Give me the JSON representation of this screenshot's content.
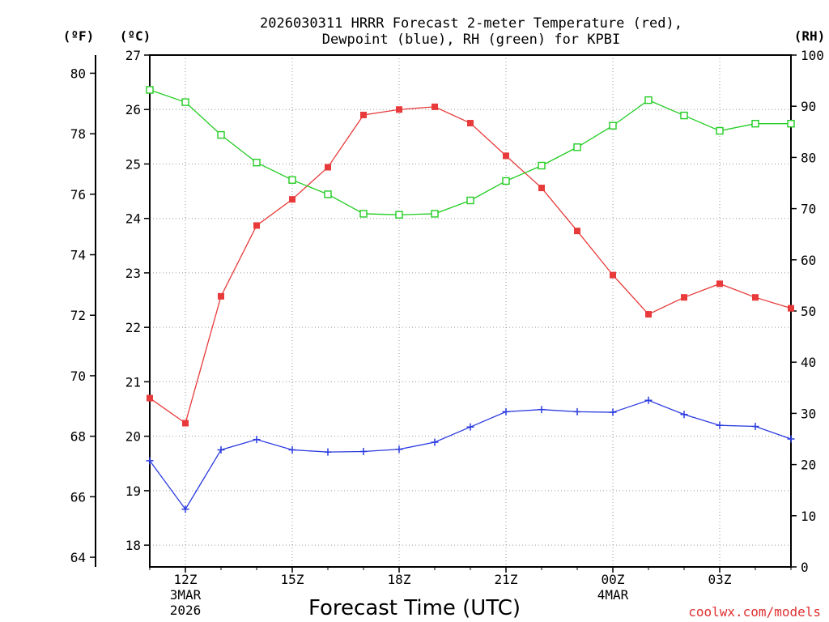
{
  "chart_data": {
    "type": "line",
    "title": "2026030311 HRRR Forecast 2-meter Temperature (red), Dewpoint (blue), RH (green) for KPBI",
    "title_lines": [
      "2026030311 HRRR Forecast 2-meter Temperature (red),",
      "Dewpoint (blue), RH (green) for KPBI"
    ],
    "xlabel": "Forecast Time (UTC)",
    "credit": "coolwx.com/models",
    "units": {
      "fahrenheit": "(ºF)",
      "celsius": "(ºC)",
      "rh": "(RH)"
    },
    "x_hours": [
      11,
      12,
      13,
      14,
      15,
      16,
      17,
      18,
      19,
      20,
      21,
      22,
      23,
      24,
      25,
      26,
      27,
      28,
      29
    ],
    "x_range": [
      11,
      29
    ],
    "x_ticks": [
      {
        "hour": 12,
        "lines": [
          "12Z",
          "3MAR",
          "2026"
        ]
      },
      {
        "hour": 15,
        "lines": [
          "15Z"
        ]
      },
      {
        "hour": 18,
        "lines": [
          "18Z"
        ]
      },
      {
        "hour": 21,
        "lines": [
          "21Z"
        ]
      },
      {
        "hour": 24,
        "lines": [
          "00Z",
          "4MAR"
        ]
      },
      {
        "hour": 27,
        "lines": [
          "03Z"
        ]
      }
    ],
    "celsius_axis": {
      "range": [
        17.6,
        27.0
      ],
      "ticks": [
        "18",
        "19",
        "20",
        "21",
        "22",
        "23",
        "24",
        "25",
        "26",
        "27"
      ]
    },
    "fahrenheit_axis": {
      "range": [
        63.68,
        80.6
      ],
      "ticks": [
        "64",
        "66",
        "68",
        "70",
        "72",
        "74",
        "76",
        "78",
        "80"
      ]
    },
    "rh_axis": {
      "range": [
        0,
        100
      ],
      "ticks": [
        "0",
        "10",
        "20",
        "30",
        "40",
        "50",
        "60",
        "70",
        "80",
        "90",
        "100"
      ]
    },
    "series": [
      {
        "name": "Temperature",
        "unit": "C",
        "color": "#e83a3a",
        "marker": "filled-square",
        "values": [
          20.7,
          20.24,
          22.57,
          23.87,
          24.35,
          24.94,
          25.9,
          26.0,
          26.05,
          25.75,
          25.15,
          24.56,
          23.77,
          22.96,
          22.24,
          22.55,
          22.8,
          22.55,
          22.35
        ]
      },
      {
        "name": "Dewpoint",
        "unit": "C",
        "color": "#2a3ae0",
        "marker": "plus",
        "values": [
          19.55,
          18.66,
          19.75,
          19.94,
          19.75,
          19.71,
          19.72,
          19.76,
          19.89,
          20.17,
          20.45,
          20.49,
          20.45,
          20.44,
          20.66,
          20.4,
          20.2,
          20.18,
          19.95
        ]
      },
      {
        "name": "RH",
        "unit": "%",
        "color": "#22cc22",
        "marker": "open-square",
        "values": [
          93.2,
          90.8,
          84.4,
          79.0,
          75.6,
          72.8,
          69.0,
          68.8,
          69.0,
          71.6,
          75.4,
          78.4,
          82.0,
          86.2,
          91.2,
          88.2,
          85.2,
          86.6,
          86.6
        ]
      }
    ]
  }
}
